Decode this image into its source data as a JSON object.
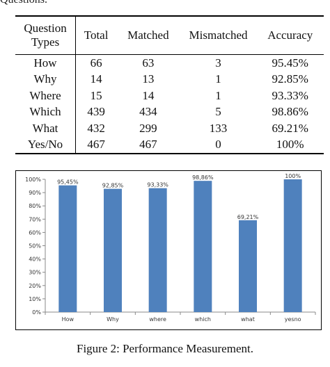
{
  "caption_top": "Questions.",
  "table": {
    "headers": [
      "Question Types",
      "Total",
      "Matched",
      "Mismatched",
      "Accuracy"
    ],
    "header_type_line1": "Question",
    "header_type_line2": "Types",
    "rows": [
      [
        "How",
        "66",
        "63",
        "3",
        "95.45%"
      ],
      [
        "Why",
        "14",
        "13",
        "1",
        "92.85%"
      ],
      [
        "Where",
        "15",
        "14",
        "1",
        "93.33%"
      ],
      [
        "Which",
        "439",
        "434",
        "5",
        "98.86%"
      ],
      [
        "What",
        "432",
        "299",
        "133",
        "69.21%"
      ],
      [
        "Yes/No",
        "467",
        "467",
        "0",
        "100%"
      ]
    ]
  },
  "chart_data": {
    "type": "bar",
    "categories": [
      "How",
      "Why",
      "where",
      "which",
      "what",
      "yesno"
    ],
    "values": [
      95.45,
      92.85,
      93.33,
      98.86,
      69.21,
      100
    ],
    "data_labels": [
      "95,45%",
      "92,85%",
      "93,33%",
      "98,86%",
      "69,21%",
      "100%"
    ],
    "y_ticks": [
      "0%",
      "10%",
      "20%",
      "30%",
      "40%",
      "50%",
      "60%",
      "70%",
      "80%",
      "90%",
      "100%"
    ],
    "ylim": [
      0,
      100
    ],
    "bar_color": "#4f81bd",
    "grid": false
  },
  "figure_caption": "Figure 2: Performance Measurement."
}
